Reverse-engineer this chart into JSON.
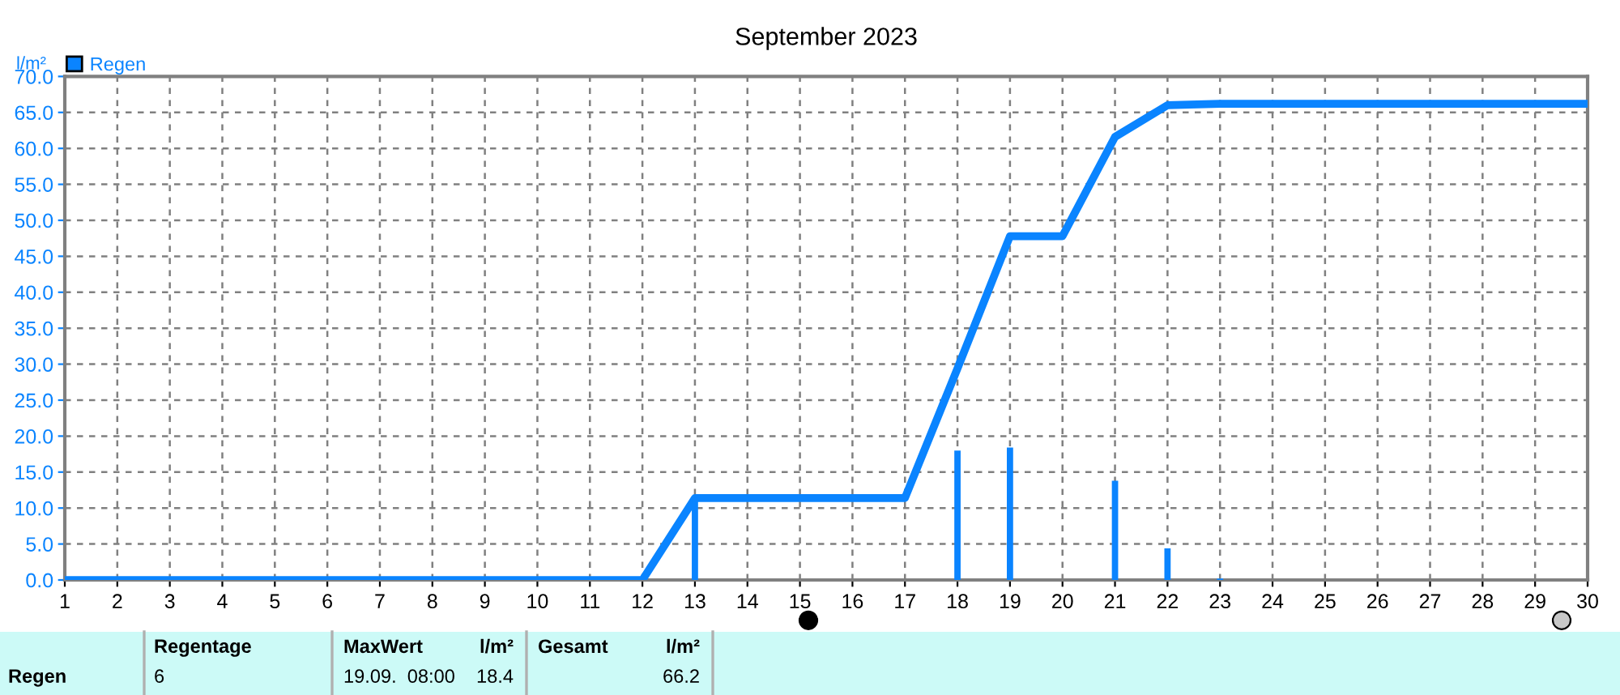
{
  "chart_data": {
    "type": "line",
    "title": "September 2023",
    "ylabel": "l/m²",
    "series": [
      {
        "color": "#0a84ff",
        "x": [
          1,
          2,
          3,
          4,
          5,
          6,
          7,
          8,
          9,
          10,
          11,
          12,
          13,
          14,
          15,
          16,
          17,
          18,
          19,
          20,
          21,
          22,
          23,
          24,
          25,
          26,
          27,
          28,
          29,
          30
        ],
        "values": [
          0,
          0,
          0,
          0,
          0,
          0,
          0,
          0,
          0,
          0,
          0,
          0,
          11.4,
          11.4,
          11.4,
          11.4,
          11.4,
          29.4,
          47.8,
          47.8,
          61.6,
          66.0,
          66.2,
          66.2,
          66.2,
          66.2,
          66.2,
          66.2,
          66.2,
          66.2
        ]
      },
      {
        "type": "bar",
        "name": "Regen",
        "color": "#0a84ff",
        "x": [
          13,
          18,
          19,
          21,
          22,
          23
        ],
        "values": [
          11.4,
          18.0,
          18.4,
          13.8,
          4.4,
          0.2
        ]
      }
    ],
    "xlim": [
      1,
      30
    ],
    "xticks": [
      1,
      2,
      3,
      4,
      5,
      6,
      7,
      8,
      9,
      10,
      11,
      12,
      13,
      14,
      15,
      16,
      17,
      18,
      19,
      20,
      21,
      22,
      23,
      24,
      25,
      26,
      27,
      28,
      29,
      30
    ],
    "ylim": [
      0,
      70
    ],
    "yticks": [
      {
        "value": 0,
        "label": "0.0"
      },
      {
        "value": 5,
        "label": "5.0"
      },
      {
        "value": 10,
        "label": "10.0"
      },
      {
        "value": 15,
        "label": "15.0"
      },
      {
        "value": 20,
        "label": "20.0"
      },
      {
        "value": 25,
        "label": "25.0"
      },
      {
        "value": 30,
        "label": "30.0"
      },
      {
        "value": 35,
        "label": "35.0"
      },
      {
        "value": 40,
        "label": "40.0"
      },
      {
        "value": 45,
        "label": "45.0"
      },
      {
        "value": 50,
        "label": "50.0"
      },
      {
        "value": 55,
        "label": "55.0"
      },
      {
        "value": 60,
        "label": "60.0"
      },
      {
        "value": 65,
        "label": "65.0"
      },
      {
        "value": 70,
        "label": "70.0"
      }
    ],
    "grid": true,
    "legend": "top left",
    "annotations": [
      "Regen",
      "Regentage",
      "6",
      "MaxWert",
      "l/m²",
      "19.09.  08:00",
      "18.4",
      "Gesamt",
      "l/m²",
      "66.2"
    ]
  }
}
